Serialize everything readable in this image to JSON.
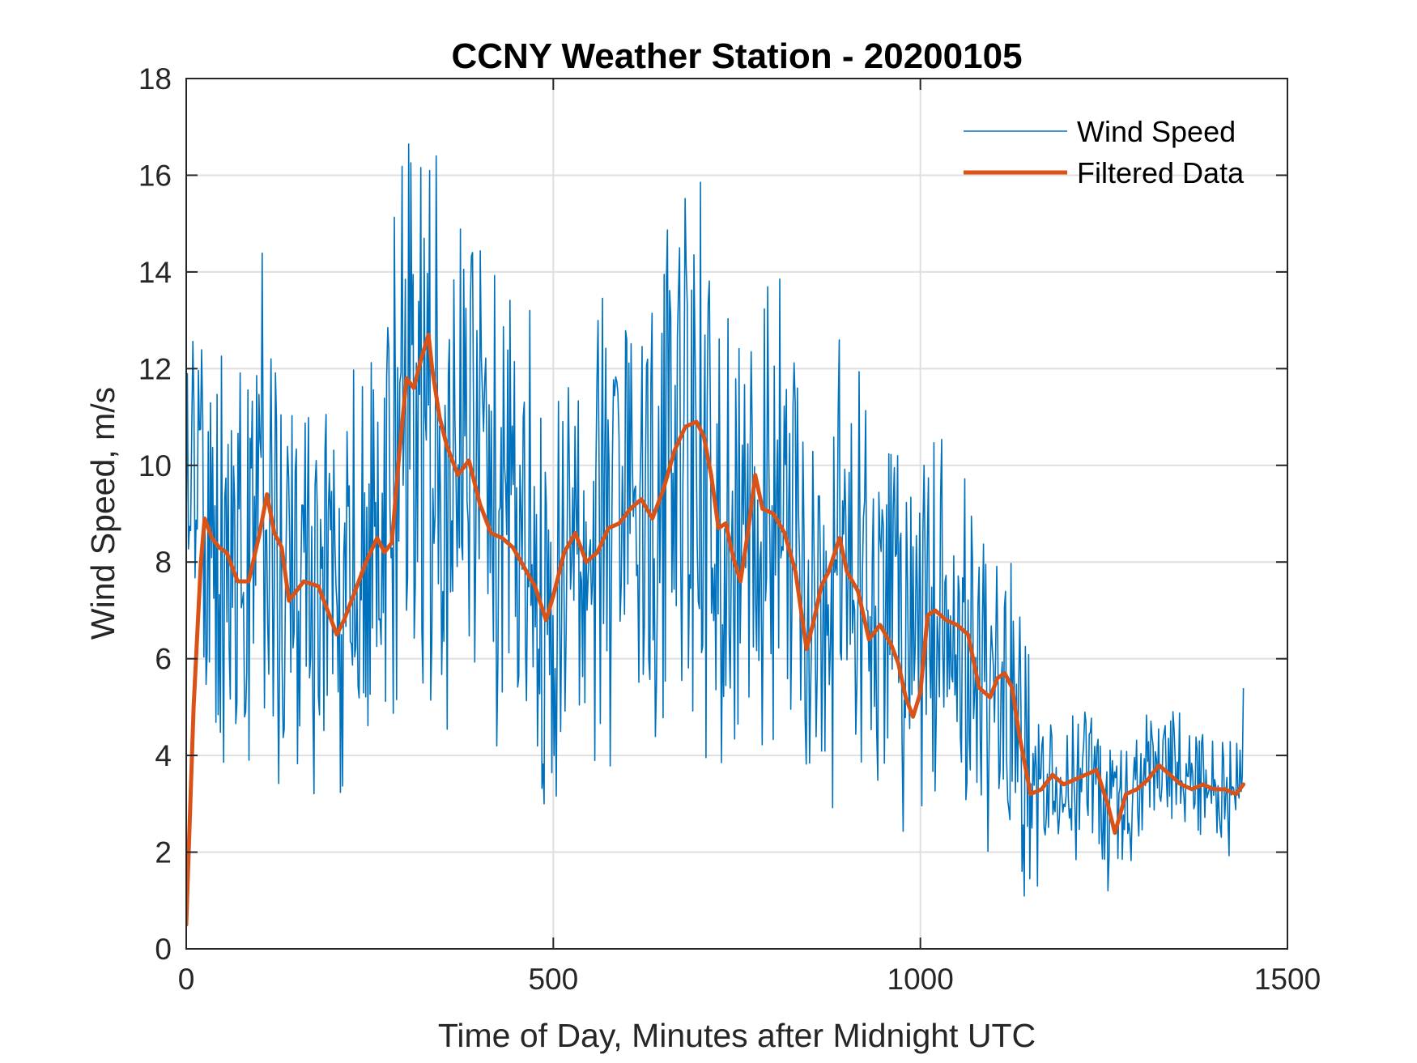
{
  "chart_data": {
    "type": "line",
    "title": "CCNY Weather Station - 20200105",
    "xlabel": "Time of Day, Minutes after Midnight UTC",
    "ylabel": "Wind Speed, m/s",
    "xlim": [
      0,
      1500
    ],
    "ylim": [
      0,
      18
    ],
    "xticks": [
      0,
      500,
      1000,
      1500
    ],
    "yticks": [
      0,
      2,
      4,
      6,
      8,
      10,
      12,
      14,
      16,
      18
    ],
    "grid": true,
    "legend_position": "top-right",
    "series": [
      {
        "name": "Wind Speed",
        "color": "#0072BD",
        "line_width": "thin",
        "noisy": true,
        "x": [
          0,
          10,
          20,
          40,
          60,
          80,
          100,
          120,
          150,
          180,
          210,
          240,
          270,
          290,
          310,
          330,
          350,
          380,
          410,
          440,
          470,
          490,
          520,
          550,
          580,
          610,
          640,
          670,
          700,
          730,
          760,
          790,
          820,
          850,
          880,
          910,
          940,
          970,
          1000,
          1030,
          1060,
          1090,
          1120,
          1150,
          1180,
          1210,
          1240,
          1270,
          1300,
          1330,
          1360,
          1390,
          1420,
          1440
        ],
        "values": [
          8.5,
          9.0,
          8.8,
          8.2,
          7.8,
          8.6,
          9.0,
          8.3,
          7.4,
          7.0,
          6.8,
          7.6,
          8.3,
          10.5,
          11.8,
          12.2,
          11.0,
          10.0,
          9.6,
          8.6,
          8.2,
          7.1,
          8.2,
          8.4,
          8.8,
          9.0,
          9.4,
          10.6,
          10.5,
          8.6,
          8.3,
          9.6,
          9.0,
          7.0,
          7.6,
          8.2,
          7.0,
          6.2,
          6.6,
          6.7,
          6.4,
          5.5,
          5.6,
          3.4,
          3.3,
          3.5,
          3.5,
          2.7,
          3.4,
          3.8,
          3.3,
          3.4,
          3.3,
          4.2
        ],
        "peaks": [
          {
            "x": 332,
            "y": 16.1
          },
          {
            "x": 672,
            "y": 14.5
          },
          {
            "x": 1005,
            "y": 10.0
          },
          {
            "x": 488,
            "y": 3.0
          },
          {
            "x": 1160,
            "y": 1.3
          },
          {
            "x": 1255,
            "y": 1.2
          }
        ]
      },
      {
        "name": "Filtered Data",
        "color": "#D95319",
        "line_width": "thick",
        "x": [
          0,
          10,
          20,
          25,
          35,
          45,
          55,
          70,
          85,
          100,
          110,
          120,
          130,
          140,
          160,
          180,
          195,
          205,
          215,
          230,
          245,
          260,
          270,
          280,
          290,
          300,
          310,
          320,
          330,
          335,
          345,
          355,
          370,
          385,
          400,
          415,
          430,
          445,
          460,
          475,
          490,
          500,
          515,
          530,
          545,
          560,
          575,
          590,
          605,
          620,
          635,
          650,
          665,
          680,
          695,
          705,
          715,
          725,
          735,
          745,
          755,
          765,
          775,
          785,
          800,
          815,
          830,
          845,
          855,
          865,
          875,
          890,
          900,
          915,
          930,
          945,
          960,
          970,
          980,
          990,
          1000,
          1010,
          1020,
          1035,
          1050,
          1065,
          1080,
          1095,
          1105,
          1115,
          1125,
          1135,
          1150,
          1165,
          1180,
          1195,
          1210,
          1225,
          1240,
          1255,
          1265,
          1280,
          1295,
          1310,
          1325,
          1340,
          1355,
          1370,
          1385,
          1400,
          1415,
          1430,
          1440
        ],
        "values": [
          0.5,
          5.0,
          8.0,
          8.9,
          8.5,
          8.3,
          8.2,
          7.6,
          7.6,
          8.6,
          9.4,
          8.6,
          8.3,
          7.2,
          7.6,
          7.5,
          6.9,
          6.5,
          6.8,
          7.4,
          8.0,
          8.5,
          8.2,
          8.4,
          10.2,
          11.8,
          11.6,
          12.2,
          12.7,
          12.0,
          11.0,
          10.4,
          9.8,
          10.1,
          9.2,
          8.6,
          8.5,
          8.3,
          7.9,
          7.5,
          6.8,
          7.3,
          8.2,
          8.6,
          8.0,
          8.2,
          8.7,
          8.8,
          9.1,
          9.3,
          8.9,
          9.5,
          10.3,
          10.8,
          10.9,
          10.6,
          9.8,
          8.7,
          8.8,
          8.1,
          7.6,
          8.6,
          9.8,
          9.1,
          9.0,
          8.6,
          7.8,
          6.2,
          6.8,
          7.5,
          7.8,
          8.5,
          7.8,
          7.4,
          6.4,
          6.7,
          6.3,
          5.9,
          5.2,
          4.8,
          5.3,
          6.9,
          7.0,
          6.8,
          6.7,
          6.5,
          5.4,
          5.2,
          5.6,
          5.7,
          5.4,
          4.4,
          3.2,
          3.3,
          3.6,
          3.4,
          3.5,
          3.6,
          3.7,
          3.0,
          2.4,
          3.2,
          3.3,
          3.5,
          3.8,
          3.6,
          3.4,
          3.3,
          3.4,
          3.3,
          3.3,
          3.2,
          3.4
        ]
      }
    ]
  }
}
